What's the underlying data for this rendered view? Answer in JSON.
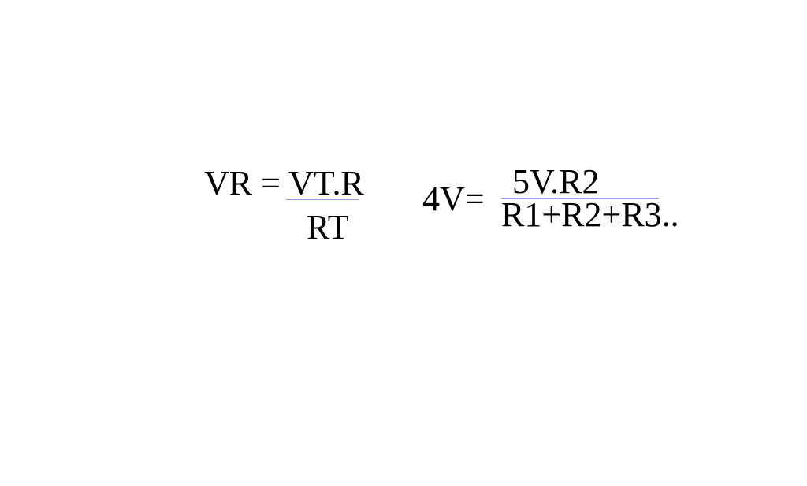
{
  "formula1": {
    "lhs": "VR = VT.R",
    "denominator": "RT"
  },
  "formula2": {
    "lhs": "4V=",
    "numerator": "5V.R2",
    "denominator": "R1+R2+R3.."
  },
  "colors": {
    "fraction_bar": "#8f9be0",
    "text": "#000000",
    "background": "#ffffff"
  }
}
